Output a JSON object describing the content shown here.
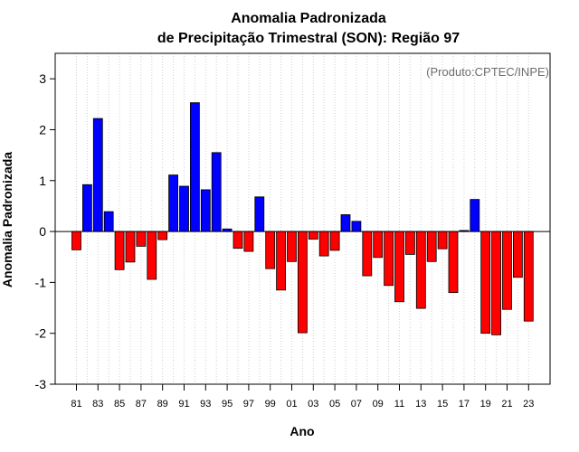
{
  "chart_data": {
    "type": "bar",
    "title_line1": "Anomalia Padronizada",
    "title_line2": "de Precipitação Trimestral (SON): Região 97",
    "xlabel": "Ano",
    "ylabel": "Anomalia Padronizada",
    "credit": "(Produto:CPTEC/INPE)",
    "ylim": [
      -3,
      3.5
    ],
    "yticks": [
      -3,
      -2,
      -1,
      0,
      1,
      2,
      3
    ],
    "xtick_labels": [
      "81",
      "83",
      "85",
      "87",
      "89",
      "91",
      "93",
      "95",
      "97",
      "99",
      "01",
      "03",
      "05",
      "07",
      "09",
      "11",
      "13",
      "15",
      "17",
      "19",
      "21",
      "23"
    ],
    "positive_color": "#0000ff",
    "negative_color": "#ff0000",
    "categories": [
      "81",
      "82",
      "83",
      "84",
      "85",
      "86",
      "87",
      "88",
      "89",
      "90",
      "91",
      "92",
      "93",
      "94",
      "95",
      "96",
      "97",
      "98",
      "99",
      "00",
      "01",
      "02",
      "03",
      "04",
      "05",
      "06",
      "07",
      "08",
      "09",
      "10",
      "11",
      "12",
      "13",
      "14",
      "15",
      "16",
      "17",
      "18",
      "19",
      "20",
      "21",
      "22",
      "23"
    ],
    "values": [
      -0.36,
      0.92,
      2.22,
      0.39,
      -0.75,
      -0.6,
      -0.29,
      -0.94,
      -0.16,
      1.11,
      0.89,
      2.53,
      0.82,
      1.55,
      0.05,
      -0.33,
      -0.39,
      0.68,
      -0.73,
      -1.15,
      -0.59,
      -1.99,
      -0.15,
      -0.48,
      -0.37,
      0.33,
      0.2,
      -0.87,
      -0.51,
      -1.06,
      -1.38,
      -0.45,
      -1.51,
      -0.59,
      -0.34,
      -1.2,
      0.02,
      0.63,
      -2.0,
      -2.03,
      -1.53,
      -0.9,
      -1.76
    ]
  }
}
